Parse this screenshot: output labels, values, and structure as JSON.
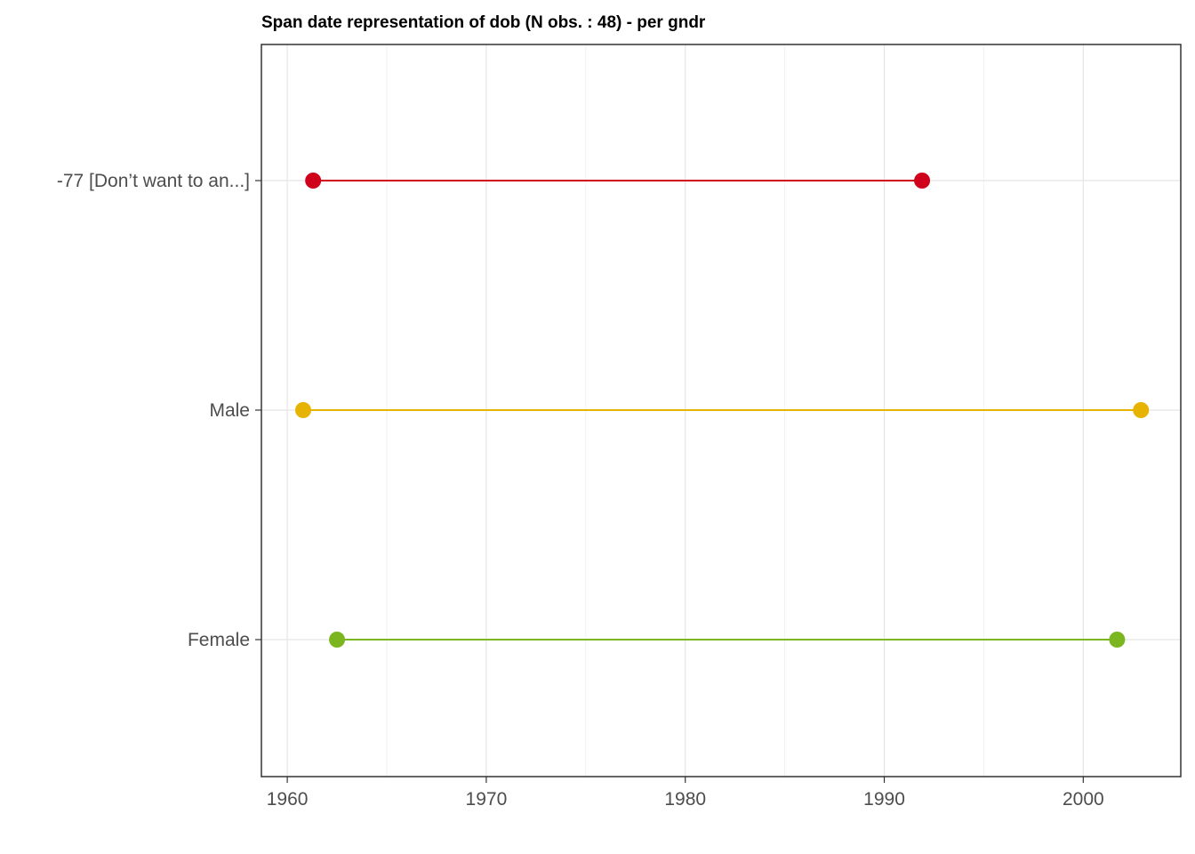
{
  "chart_data": {
    "type": "dumbbell",
    "title": "Span date representation of dob (N obs. : 48) - per gndr",
    "xlabel": "",
    "ylabel": "",
    "xlim": [
      1958.7,
      2004.9
    ],
    "x_ticks": [
      1960,
      1970,
      1980,
      1990,
      2000
    ],
    "x_tick_labels": [
      "1960",
      "1970",
      "1980",
      "1990",
      "2000"
    ],
    "grid": true,
    "categories": [
      "Female",
      "Male",
      "-77 [Don’t want to an...]"
    ],
    "series": [
      {
        "category": "Female",
        "min": 1962.5,
        "max": 2001.7,
        "color": "#7bb51f"
      },
      {
        "category": "Male",
        "min": 1960.8,
        "max": 2002.9,
        "color": "#e5b300"
      },
      {
        "category": "-77 [Don’t want to an...]",
        "min": 1961.3,
        "max": 1991.9,
        "color": "#d0021b"
      }
    ]
  }
}
